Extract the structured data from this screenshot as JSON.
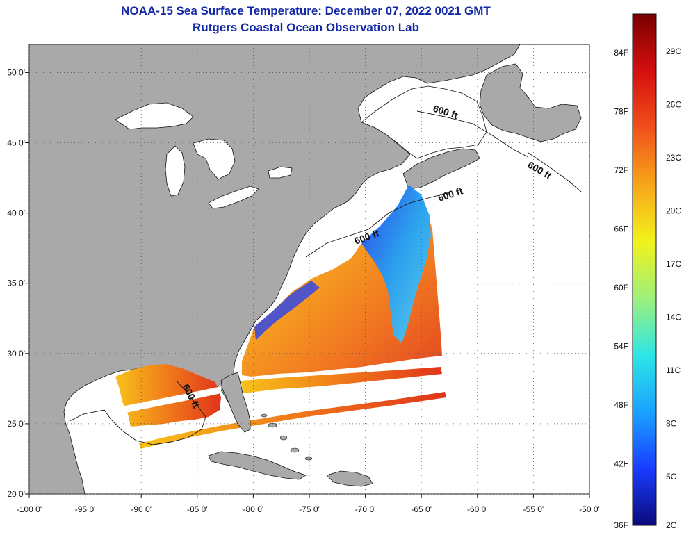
{
  "title": {
    "line1": "NOAA-15 Sea Surface Temperature:  December 07, 2022 0021 GMT",
    "line2": "Rutgers Coastal Ocean Observation Lab"
  },
  "map": {
    "lon_range": [
      -100,
      -50
    ],
    "lat_range": [
      20,
      52
    ],
    "lon_ticks": [
      {
        "value": -100,
        "label": "-100 0'"
      },
      {
        "value": -95,
        "label": "-95 0'"
      },
      {
        "value": -90,
        "label": "-90 0'"
      },
      {
        "value": -85,
        "label": "-85 0'"
      },
      {
        "value": -80,
        "label": "-80 0'"
      },
      {
        "value": -75,
        "label": "-75 0'"
      },
      {
        "value": -70,
        "label": "-70 0'"
      },
      {
        "value": -65,
        "label": "-65 0'"
      },
      {
        "value": -60,
        "label": "-60 0'"
      },
      {
        "value": -55,
        "label": "-55 0'"
      },
      {
        "value": -50,
        "label": "-50 0'"
      }
    ],
    "lat_ticks": [
      {
        "value": 50,
        "label": "50 0'"
      },
      {
        "value": 45,
        "label": "45 0'"
      },
      {
        "value": 40,
        "label": "40 0'"
      },
      {
        "value": 35,
        "label": "35 0'"
      },
      {
        "value": 30,
        "label": "30 0'"
      },
      {
        "value": 25,
        "label": "25 0'"
      },
      {
        "value": 20,
        "label": "20 0'"
      }
    ],
    "contour_labels": [
      "600 ft",
      "600 ft",
      "600 ft",
      "600 ft",
      "600 ft"
    ],
    "colors": {
      "land": "#a9a9a9",
      "ocean_no_data": "#ffffff",
      "grid": "#555555",
      "coast": "#111111"
    }
  },
  "colorbar": {
    "fahrenheit_labels": [
      "84F",
      "78F",
      "72F",
      "66F",
      "60F",
      "54F",
      "48F",
      "42F",
      "36F"
    ],
    "celsius_labels": [
      "29C",
      "26C",
      "23C",
      "20C",
      "17C",
      "14C",
      "11C",
      "8C",
      "5C",
      "2C"
    ],
    "color_stops": [
      "#0a0a7a",
      "#1a3cff",
      "#1aa3ff",
      "#2ee6e6",
      "#9ef07a",
      "#f2f21a",
      "#f7a51a",
      "#f0501a",
      "#d40f0f",
      "#7a0000"
    ]
  }
}
